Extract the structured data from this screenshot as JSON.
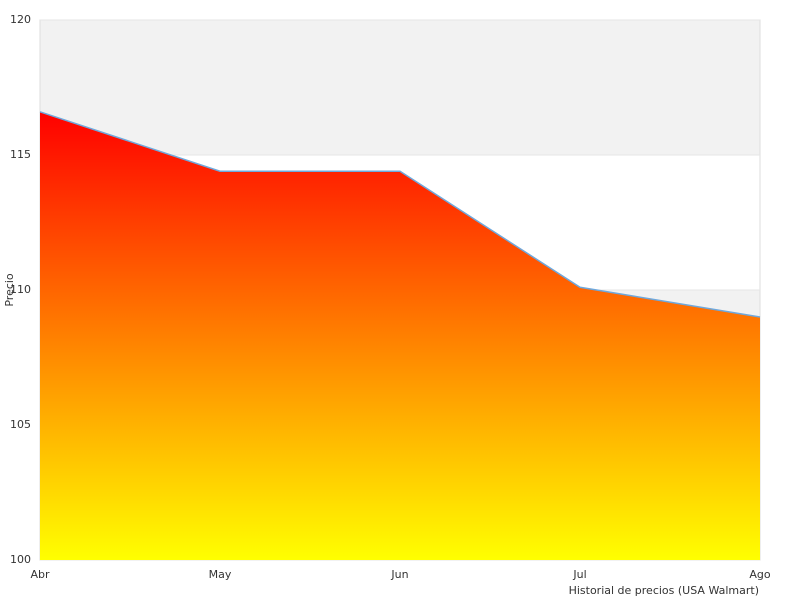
{
  "chart_data": {
    "type": "area",
    "x_label": "Historial de precios (USA Walmart)",
    "y_label": "Precio",
    "categories": [
      "Abr",
      "May",
      "Jun",
      "Jul",
      "Ago"
    ],
    "values": [
      116.6,
      114.4,
      114.4,
      110.1,
      109.0
    ],
    "gradient_colors": [
      "#ff0000",
      "#ffff00"
    ],
    "line_color": "#6fa8dc",
    "band_color": "#f2f2f2",
    "ylim": [
      100,
      120
    ],
    "yticks": [
      100,
      105,
      110,
      115,
      120
    ]
  }
}
